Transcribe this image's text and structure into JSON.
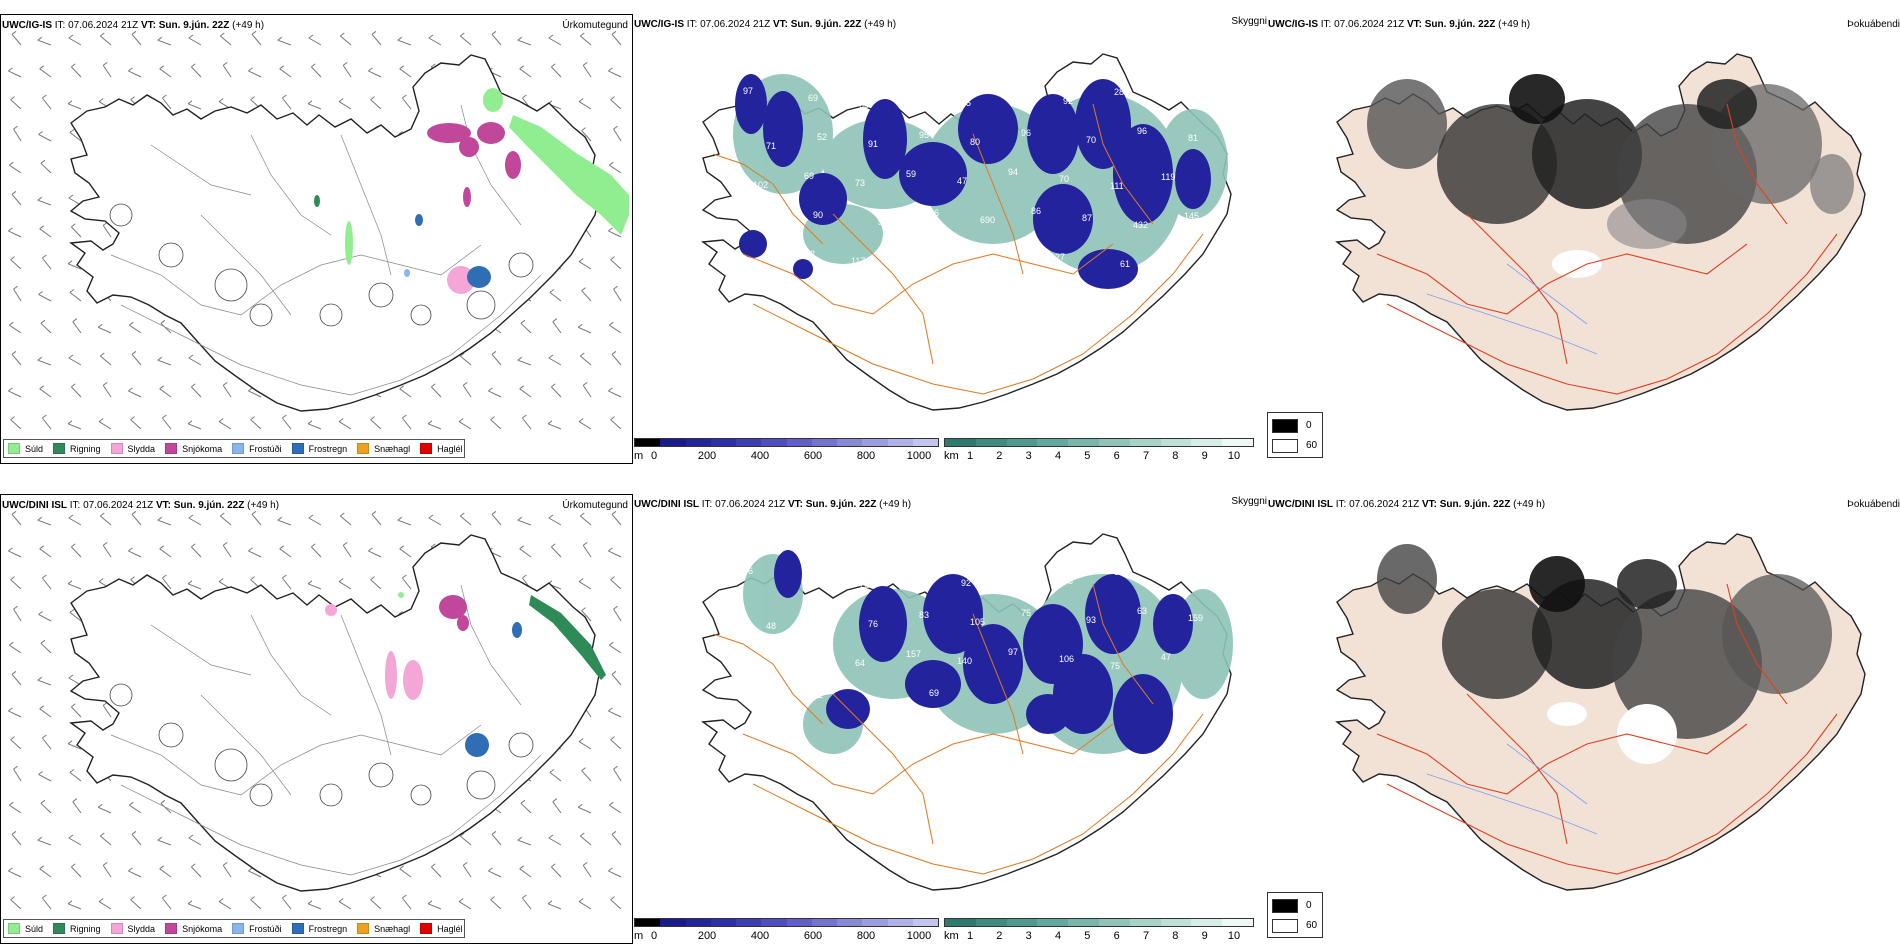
{
  "rows": [
    {
      "model": "UWC/IG-IS",
      "it_label": "IT:",
      "it_value": "07.06.2024 21Z",
      "vt_label": "VT:",
      "vt_value": "Sun. 9.jún. 22Z",
      "lead": "(+49 h)",
      "precip_title": "Úrkomutegund",
      "cloud_title": "Skyggni",
      "fog_title": "Þokuábendi",
      "cloud_labels": [
        "97",
        "69",
        "63",
        "81",
        "75",
        "97",
        "92",
        "28",
        "77",
        "71",
        "52",
        "91",
        "95",
        "80",
        "96",
        "70",
        "96",
        "81",
        "102",
        "69",
        "73",
        "59",
        "47",
        "94",
        "70",
        "111",
        "119",
        "62",
        "90",
        "57",
        "36",
        "690",
        "86",
        "87",
        "432",
        "145",
        "71",
        "102",
        "117",
        "61",
        "74",
        "48",
        "27",
        "61"
      ]
    },
    {
      "model": "UWC/DINI ISL",
      "it_label": "IT:",
      "it_value": "07.06.2024 21Z",
      "vt_label": "VT:",
      "vt_value": "Sun. 9.jún. 22Z",
      "lead": "(+49 h)",
      "precip_title": "Úrkomutegund",
      "cloud_title": "Skyggni",
      "fog_title": "Þokuábendi",
      "cloud_labels": [
        "76",
        "93",
        "72",
        "42",
        "92",
        "79",
        "75",
        "85",
        "73",
        "48",
        "73",
        "76",
        "83",
        "105",
        "75",
        "93",
        "63",
        "159",
        "100",
        "104",
        "64",
        "157",
        "140",
        "97",
        "106",
        "75",
        "47",
        "92",
        "52",
        "45",
        "69"
      ]
    }
  ],
  "precip_legend": [
    {
      "label": "Súld",
      "color": "#90ee90"
    },
    {
      "label": "Rigning",
      "color": "#2e8b57"
    },
    {
      "label": "Slydda",
      "color": "#f4a6d7"
    },
    {
      "label": "Snjókoma",
      "color": "#c0479a"
    },
    {
      "label": "Frostúði",
      "color": "#8ab6f0"
    },
    {
      "label": "Frostregn",
      "color": "#2f6db5"
    },
    {
      "label": "Snæhagl",
      "color": "#f0a020"
    },
    {
      "label": "Haglél",
      "color": "#e00000"
    }
  ],
  "cloud_base_bar": {
    "unit": "m",
    "ticks": [
      "0",
      "200",
      "400",
      "600",
      "800",
      "1000"
    ],
    "colors": [
      "#000000",
      "#1a1a8a",
      "#23239e",
      "#2e2eaa",
      "#3d3db5",
      "#4e4ec0",
      "#6060c8",
      "#7474d0",
      "#8888d8",
      "#9c9ce0",
      "#b0b0e8",
      "#c4c4f0"
    ]
  },
  "visibility_bar": {
    "unit": "km",
    "ticks": [
      "1",
      "2",
      "3",
      "4",
      "5",
      "6",
      "7",
      "8",
      "9",
      "10"
    ],
    "colors": [
      "#2a7a6e",
      "#3c8c80",
      "#4e9a8e",
      "#62a89c",
      "#78b6aa",
      "#8ec4b8",
      "#a6d2c8",
      "#bee0d8",
      "#d6ede8",
      "#eef8f5"
    ]
  },
  "fog_scale": {
    "black_label": "0",
    "white_label": "60"
  }
}
